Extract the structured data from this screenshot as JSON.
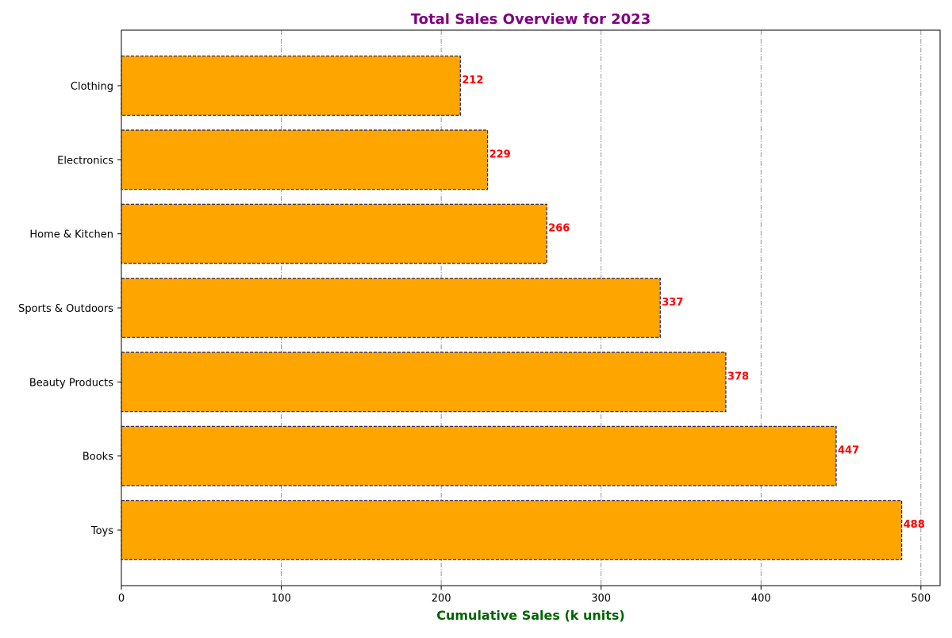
{
  "chart_data": {
    "type": "bar",
    "orientation": "horizontal",
    "title": "Total Sales Overview for 2023",
    "xlabel": "Cumulative Sales (k units)",
    "ylabel": "",
    "categories": [
      "Toys",
      "Books",
      "Beauty Products",
      "Sports & Outdoors",
      "Home & Kitchen",
      "Electronics",
      "Clothing"
    ],
    "values": [
      488,
      447,
      378,
      337,
      266,
      229,
      212
    ],
    "xlim": [
      0,
      512
    ],
    "xticks": [
      0,
      100,
      200,
      300,
      400,
      500
    ],
    "grid": "x-axis vertical dashed",
    "legend": "none",
    "colors": {
      "bar_fill": "#FFA500",
      "bar_edge": "#191970",
      "value_label": "#FF0000",
      "title": "#800080",
      "xlabel": "#006400",
      "grid": "#808080"
    }
  }
}
